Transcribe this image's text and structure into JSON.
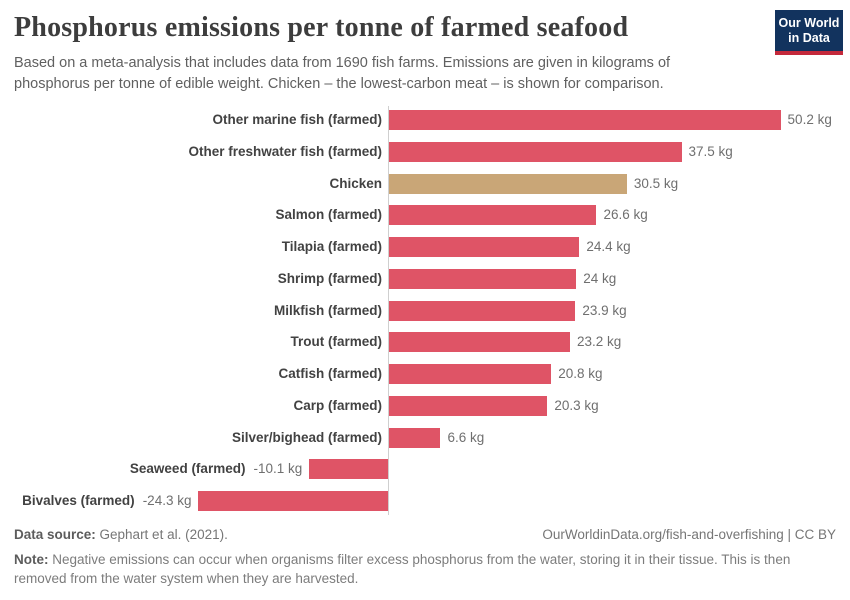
{
  "header": {
    "title": "Phosphorus emissions per tonne of farmed seafood",
    "subtitle": "Based on a meta-analysis that includes data from 1690 fish farms. Emissions are given in kilograms of phosphorus per tonne of edible weight. Chicken – the lowest-carbon meat – is shown for comparison.",
    "logo": {
      "line1": "Our World",
      "line2": "in Data",
      "bg_color": "#12335e",
      "accent_color": "#c4293b"
    }
  },
  "chart_data": {
    "type": "bar",
    "orientation": "horizontal",
    "title": "Phosphorus emissions per tonne of farmed seafood",
    "unit": "kg",
    "xlim": [
      -24.3,
      50.2
    ],
    "grid": false,
    "highlight_category": "Chicken",
    "default_bar_color": "#df5466",
    "highlight_bar_color": "#c9a677",
    "categories": [
      "Other marine fish (farmed)",
      "Other freshwater fish (farmed)",
      "Chicken",
      "Salmon (farmed)",
      "Tilapia (farmed)",
      "Shrimp (farmed)",
      "Milkfish (farmed)",
      "Trout (farmed)",
      "Catfish (farmed)",
      "Carp (farmed)",
      "Silver/bighead (farmed)",
      "Seaweed (farmed)",
      "Bivalves (farmed)"
    ],
    "values": [
      50.2,
      37.5,
      30.5,
      26.6,
      24.4,
      24,
      23.9,
      23.2,
      20.8,
      20.3,
      6.6,
      -10.1,
      -24.3
    ],
    "value_labels": [
      "50.2 kg",
      "37.5 kg",
      "30.5 kg",
      "26.6 kg",
      "24.4 kg",
      "24 kg",
      "23.9 kg",
      "23.2 kg",
      "20.8 kg",
      "20.3 kg",
      "6.6 kg",
      "-10.1 kg",
      "-24.3 kg"
    ],
    "bar_colors": [
      "#df5466",
      "#df5466",
      "#c9a677",
      "#df5466",
      "#df5466",
      "#df5466",
      "#df5466",
      "#df5466",
      "#df5466",
      "#df5466",
      "#df5466",
      "#df5466",
      "#df5466"
    ]
  },
  "footer": {
    "source_label": "Data source:",
    "source_text": " Gephart et al. (2021).",
    "link_text": "OurWorldinData.org/fish-and-overfishing | CC BY",
    "note_label": "Note:",
    "note_text": " Negative emissions can occur when organisms filter excess phosphorus from the water, storing it in their tissue. This is then removed from the water system when they are harvested."
  }
}
